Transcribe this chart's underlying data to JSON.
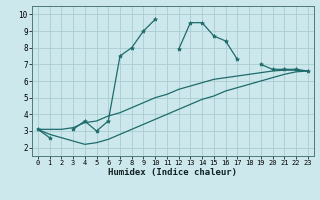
{
  "xlabel": "Humidex (Indice chaleur)",
  "bg_color": "#cce8ec",
  "line_color": "#1e6b6b",
  "grid_color": "#aaccd0",
  "x_data": [
    0,
    1,
    2,
    3,
    4,
    5,
    6,
    7,
    8,
    9,
    10,
    11,
    12,
    13,
    14,
    15,
    16,
    17,
    18,
    19,
    20,
    21,
    22,
    23
  ],
  "line1": [
    3.1,
    2.6,
    null,
    3.1,
    3.6,
    3.0,
    3.6,
    7.5,
    8.0,
    9.0,
    9.7,
    null,
    7.9,
    9.5,
    9.5,
    8.7,
    8.4,
    7.3,
    null,
    7.0,
    6.7,
    6.7,
    6.7,
    6.6
  ],
  "line2": [
    3.1,
    3.1,
    3.1,
    3.2,
    3.5,
    3.6,
    3.9,
    4.1,
    4.4,
    4.7,
    5.0,
    5.2,
    5.5,
    5.7,
    5.9,
    6.1,
    6.2,
    6.3,
    6.4,
    6.5,
    6.6,
    6.65,
    6.65,
    6.6
  ],
  "line3": [
    3.1,
    2.8,
    2.6,
    2.4,
    2.2,
    2.3,
    2.5,
    2.8,
    3.1,
    3.4,
    3.7,
    4.0,
    4.3,
    4.6,
    4.9,
    5.1,
    5.4,
    5.6,
    5.8,
    6.0,
    6.2,
    6.4,
    6.55,
    6.6
  ],
  "xlim": [
    -0.5,
    23.5
  ],
  "ylim": [
    1.5,
    10.5
  ],
  "xticks": [
    0,
    1,
    2,
    3,
    4,
    5,
    6,
    7,
    8,
    9,
    10,
    11,
    12,
    13,
    14,
    15,
    16,
    17,
    18,
    19,
    20,
    21,
    22,
    23
  ],
  "yticks": [
    2,
    3,
    4,
    5,
    6,
    7,
    8,
    9,
    10
  ]
}
